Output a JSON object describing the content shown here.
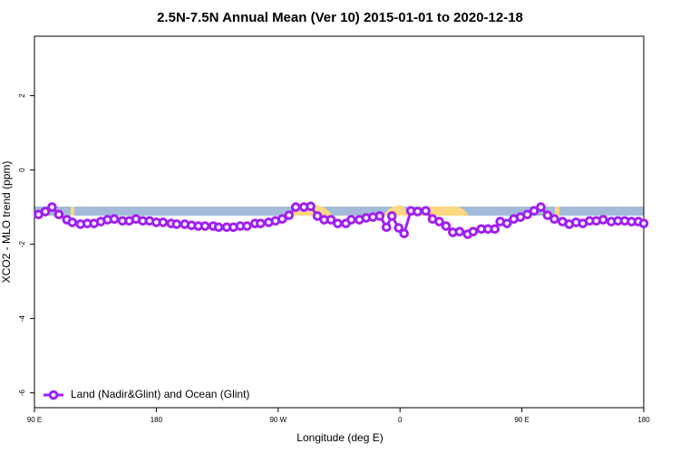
{
  "chart_data": {
    "type": "line",
    "title": "2.5N-7.5N Annual Mean (Ver 10)   2015-01-01 to 2020-12-18",
    "xlabel": "Longitude (deg E)",
    "ylabel": "XCO2 - MLO trend (ppm)",
    "x": [
      93,
      98,
      103,
      108,
      114,
      118,
      124,
      129,
      134,
      139,
      144,
      149,
      155,
      160,
      165,
      170,
      175,
      180,
      185,
      191,
      195,
      201,
      206,
      211,
      216,
      222,
      226,
      232,
      237,
      242,
      247,
      253,
      257,
      263,
      268,
      273,
      278,
      283,
      289,
      294,
      299,
      304,
      309,
      314,
      320,
      324,
      330,
      335,
      340,
      345,
      350,
      354,
      359,
      363,
      368,
      373,
      379,
      384,
      389,
      394,
      399,
      404,
      410,
      414,
      420,
      425,
      430,
      434,
      439,
      444,
      449,
      454,
      459,
      464,
      469,
      474,
      480,
      485,
      490,
      495,
      500,
      505,
      510,
      516,
      521,
      526,
      531,
      536,
      540
    ],
    "series": [
      {
        "name": "Land (Nadir&Glint) and Ocean (Glint)",
        "color": "#a020f0",
        "values": [
          -1.2,
          -1.12,
          -1.0,
          -1.2,
          -1.34,
          -1.41,
          -1.46,
          -1.44,
          -1.44,
          -1.39,
          -1.34,
          -1.32,
          -1.37,
          -1.37,
          -1.32,
          -1.37,
          -1.37,
          -1.41,
          -1.41,
          -1.44,
          -1.46,
          -1.46,
          -1.49,
          -1.51,
          -1.51,
          -1.51,
          -1.54,
          -1.54,
          -1.54,
          -1.51,
          -1.51,
          -1.44,
          -1.44,
          -1.41,
          -1.37,
          -1.32,
          -1.22,
          -1.0,
          -1.0,
          -0.98,
          -1.24,
          -1.34,
          -1.34,
          -1.44,
          -1.44,
          -1.34,
          -1.34,
          -1.29,
          -1.27,
          -1.24,
          -1.54,
          -1.24,
          -1.56,
          -1.71,
          -1.1,
          -1.12,
          -1.1,
          -1.32,
          -1.39,
          -1.51,
          -1.68,
          -1.66,
          -1.73,
          -1.66,
          -1.59,
          -1.59,
          -1.59,
          -1.39,
          -1.44,
          -1.32,
          -1.27,
          -1.2,
          -1.1,
          -1.0,
          -1.22,
          -1.32,
          -1.39,
          -1.46,
          -1.41,
          -1.44,
          -1.37,
          -1.37,
          -1.34,
          -1.39,
          -1.37,
          -1.37,
          -1.39,
          -1.39,
          -1.44
        ]
      }
    ],
    "xlim": [
      90,
      540
    ],
    "ylim": [
      -6.4,
      3.6
    ],
    "xticks": [
      {
        "value": 90,
        "label": "90 E"
      },
      180,
      {
        "value": 270,
        "label": "90 W"
      },
      {
        "value": 360,
        "label": "0"
      },
      {
        "value": 450,
        "label": "90 E"
      },
      {
        "value": 540,
        "label": "180"
      }
    ],
    "yticks": [
      -6,
      -4,
      -2,
      0,
      2
    ],
    "legend": "bottomleft"
  }
}
